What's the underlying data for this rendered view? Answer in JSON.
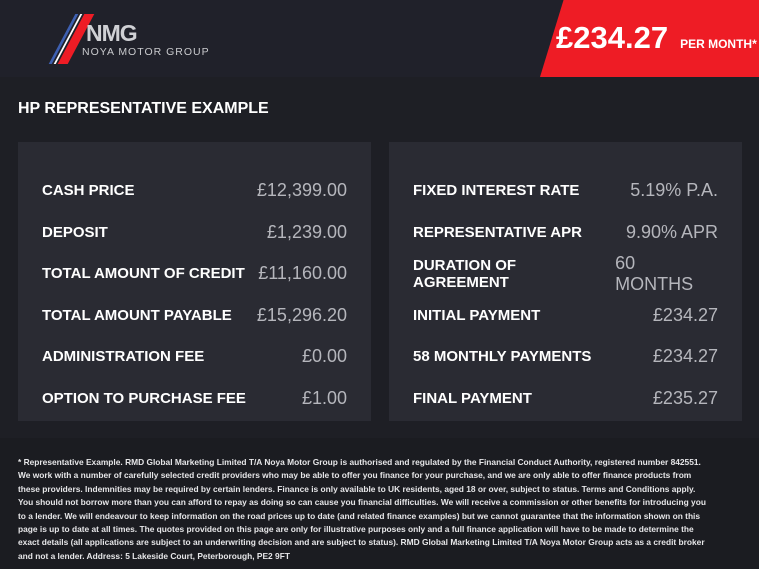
{
  "header": {
    "logo_text": "NMG",
    "logo_subtitle": "NOYA MOTOR GROUP",
    "price": "£234.27",
    "price_suffix": "PER MONTH*",
    "brand_color": "#ee1c25"
  },
  "title": "HP REPRESENTATIVE EXAMPLE",
  "left": [
    {
      "label": "CASH PRICE",
      "value": "£12,399.00"
    },
    {
      "label": "DEPOSIT",
      "value": "£1,239.00"
    },
    {
      "label": "TOTAL AMOUNT OF CREDIT",
      "value": "£11,160.00"
    },
    {
      "label": "TOTAL AMOUNT PAYABLE",
      "value": "£15,296.20"
    },
    {
      "label": "ADMINISTRATION FEE",
      "value": "£0.00"
    },
    {
      "label": "OPTION TO PURCHASE FEE",
      "value": "£1.00"
    }
  ],
  "right": [
    {
      "label": "FIXED INTEREST RATE",
      "value": "5.19% P.A."
    },
    {
      "label": "REPRESENTATIVE APR",
      "value": "9.90% APR"
    },
    {
      "label": "DURATION OF AGREEMENT",
      "value": "60 MONTHS"
    },
    {
      "label": "INITIAL PAYMENT",
      "value": "£234.27"
    },
    {
      "label": "58 MONTHLY PAYMENTS",
      "value": "£234.27"
    },
    {
      "label": "FINAL PAYMENT",
      "value": "£235.27"
    }
  ],
  "disclaimer": "* Representative Example. RMD Global Marketing Limited T/A Noya Motor Group is authorised and regulated by the Financial Conduct Authority, registered number 842551. We work with a number of carefully selected credit providers who may be able to offer you finance for your purchase, and we are only able to offer finance products from these providers. Indemnities may be required by certain lenders. Finance is only available to UK residents, aged 18 or over, subject to status. Terms and Conditions apply. You should not borrow more than you can afford to repay as doing so can cause you financial difficulties. We will receive a commission or other benefits for introducing you to a lender. We will endeavour to keep information on the road prices up to date (and related finance examples) but we cannot guarantee that the information shown on this page is up to date at all times. The quotes provided on this page are only for illustrative purposes only and a full finance application will have to be made to determine the exact details (all applications are subject to an underwriting decision and are subject to status). RMD Global Marketing Limited T/A Noya Motor Group acts as a credit broker and not a lender. Address: 5 Lakeside Court, Peterborough, PE2 9FT"
}
